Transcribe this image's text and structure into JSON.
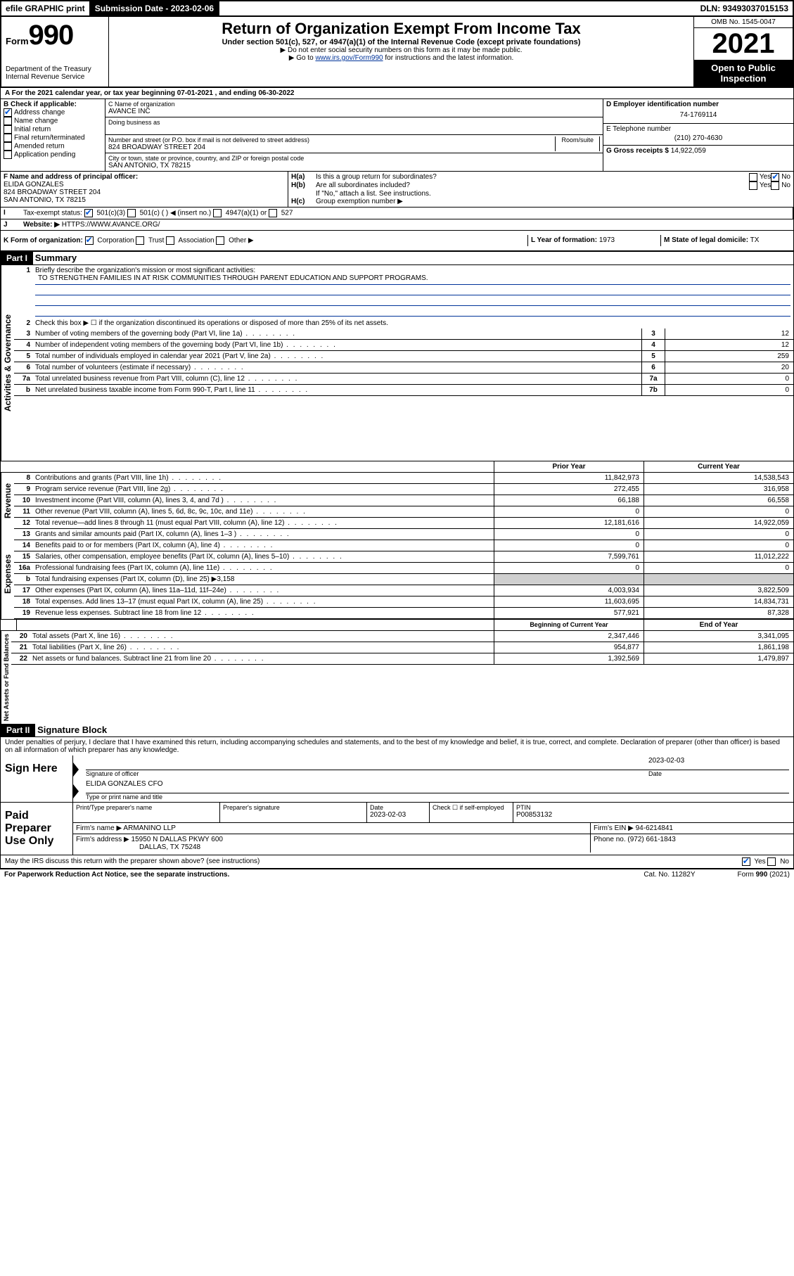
{
  "topbar": {
    "efile": "efile GRAPHIC print",
    "submission": "Submission Date - 2023-02-06",
    "dln": "DLN: 93493037015153"
  },
  "header": {
    "form_label": "Form",
    "form_number": "990",
    "dept": "Department of the Treasury",
    "irs": "Internal Revenue Service",
    "title": "Return of Organization Exempt From Income Tax",
    "subtitle": "Under section 501(c), 527, or 4947(a)(1) of the Internal Revenue Code (except private foundations)",
    "instr1": "▶ Do not enter social security numbers on this form as it may be made public.",
    "instr2_pre": "▶ Go to ",
    "instr2_link": "www.irs.gov/Form990",
    "instr2_post": " for instructions and the latest information.",
    "omb": "OMB No. 1545-0047",
    "year": "2021",
    "open_pub": "Open to Public Inspection"
  },
  "periodline": "For the 2021 calendar year, or tax year beginning 07-01-2021  , and ending 06-30-2022",
  "boxB": {
    "label": "B Check if applicable:",
    "items": [
      "Address change",
      "Name change",
      "Initial return",
      "Final return/terminated",
      "Amended return",
      "Application pending"
    ],
    "checked_index": 0
  },
  "boxC": {
    "label_name": "C Name of organization",
    "org_name": "AVANCE INC",
    "dba_label": "Doing business as",
    "street_label": "Number and street (or P.O. box if mail is not delivered to street address)",
    "room_label": "Room/suite",
    "street": "824 BROADWAY STREET 204",
    "city_label": "City or town, state or province, country, and ZIP or foreign postal code",
    "city": "SAN ANTONIO, TX  78215"
  },
  "boxD": {
    "label": "D Employer identification number",
    "value": "74-1769114"
  },
  "boxE": {
    "label": "E Telephone number",
    "value": "(210) 270-4630"
  },
  "boxG": {
    "label": "G Gross receipts $",
    "value": "14,922,059"
  },
  "boxF": {
    "label": "F Name and address of principal officer:",
    "line1": "ELIDA GONZALES",
    "line2": "824 BROADWAY STREET 204",
    "line3": "SAN ANTONIO, TX  78215"
  },
  "boxH": {
    "a_label": "Is this a group return for subordinates?",
    "a_prefix": "H(a)",
    "b_prefix": "H(b)",
    "b_label": "Are all subordinates included?",
    "ifno": "If \"No,\" attach a list. See instructions.",
    "c_prefix": "H(c)",
    "c_label": "Group exemption number ▶",
    "yes": "Yes",
    "no": "No"
  },
  "boxI": {
    "label": "Tax-exempt status:",
    "c3": "501(c)(3)",
    "c": "501(c) (   ) ◀ (insert no.)",
    "a1": "4947(a)(1) or",
    "s527": "527"
  },
  "boxJ": {
    "label": "Website: ▶",
    "value": "HTTPS://WWW.AVANCE.ORG/"
  },
  "boxK": {
    "label": "K Form of organization:",
    "opts": [
      "Corporation",
      "Trust",
      "Association",
      "Other ▶"
    ]
  },
  "boxL": {
    "label": "L Year of formation:",
    "value": "1973"
  },
  "boxM": {
    "label": "M State of legal domicile:",
    "value": "TX"
  },
  "part1": {
    "header": "Part I",
    "title": "Summary"
  },
  "mission": {
    "line_label": "1",
    "prompt": "Briefly describe the organization's mission or most significant activities:",
    "text": "TO STRENGTHEN FAMILIES IN AT RISK COMMUNITIES THROUGH PARENT EDUCATION AND SUPPORT PROGRAMS."
  },
  "governance_lines": [
    {
      "num": "2",
      "text": "Check this box ▶ ☐  if the organization discontinued its operations or disposed of more than 25% of its net assets."
    },
    {
      "num": "3",
      "text": "Number of voting members of the governing body (Part VI, line 1a)",
      "box": "3",
      "val": "12"
    },
    {
      "num": "4",
      "text": "Number of independent voting members of the governing body (Part VI, line 1b)",
      "box": "4",
      "val": "12"
    },
    {
      "num": "5",
      "text": "Total number of individuals employed in calendar year 2021 (Part V, line 2a)",
      "box": "5",
      "val": "259"
    },
    {
      "num": "6",
      "text": "Total number of volunteers (estimate if necessary)",
      "box": "6",
      "val": "20"
    },
    {
      "num": "7a",
      "text": "Total unrelated business revenue from Part VIII, column (C), line 12",
      "box": "7a",
      "val": "0"
    },
    {
      "num": "b",
      "text": "Net unrelated business taxable income from Form 990-T, Part I, line 11",
      "box": "7b",
      "val": "0"
    }
  ],
  "twocol_header": {
    "prior": "Prior Year",
    "current": "Current Year",
    "begin": "Beginning of Current Year",
    "end": "End of Year"
  },
  "revenue_lines": [
    {
      "num": "8",
      "text": "Contributions and grants (Part VIII, line 1h)",
      "prior": "11,842,973",
      "cur": "14,538,543"
    },
    {
      "num": "9",
      "text": "Program service revenue (Part VIII, line 2g)",
      "prior": "272,455",
      "cur": "316,958"
    },
    {
      "num": "10",
      "text": "Investment income (Part VIII, column (A), lines 3, 4, and 7d )",
      "prior": "66,188",
      "cur": "66,558"
    },
    {
      "num": "11",
      "text": "Other revenue (Part VIII, column (A), lines 5, 6d, 8c, 9c, 10c, and 11e)",
      "prior": "0",
      "cur": "0"
    },
    {
      "num": "12",
      "text": "Total revenue—add lines 8 through 11 (must equal Part VIII, column (A), line 12)",
      "prior": "12,181,616",
      "cur": "14,922,059"
    }
  ],
  "expense_lines": [
    {
      "num": "13",
      "text": "Grants and similar amounts paid (Part IX, column (A), lines 1–3 )",
      "prior": "0",
      "cur": "0"
    },
    {
      "num": "14",
      "text": "Benefits paid to or for members (Part IX, column (A), line 4)",
      "prior": "0",
      "cur": "0"
    },
    {
      "num": "15",
      "text": "Salaries, other compensation, employee benefits (Part IX, column (A), lines 5–10)",
      "prior": "7,599,761",
      "cur": "11,012,222"
    },
    {
      "num": "16a",
      "text": "Professional fundraising fees (Part IX, column (A), line 11e)",
      "prior": "0",
      "cur": "0"
    },
    {
      "num": "b",
      "text": "Total fundraising expenses (Part IX, column (D), line 25) ▶3,158",
      "grey": true
    },
    {
      "num": "17",
      "text": "Other expenses (Part IX, column (A), lines 11a–11d, 11f–24e)",
      "prior": "4,003,934",
      "cur": "3,822,509"
    },
    {
      "num": "18",
      "text": "Total expenses. Add lines 13–17 (must equal Part IX, column (A), line 25)",
      "prior": "11,603,695",
      "cur": "14,834,731"
    },
    {
      "num": "19",
      "text": "Revenue less expenses. Subtract line 18 from line 12",
      "prior": "577,921",
      "cur": "87,328"
    }
  ],
  "netassets_lines": [
    {
      "num": "20",
      "text": "Total assets (Part X, line 16)",
      "prior": "2,347,446",
      "cur": "3,341,095"
    },
    {
      "num": "21",
      "text": "Total liabilities (Part X, line 26)",
      "prior": "954,877",
      "cur": "1,861,198"
    },
    {
      "num": "22",
      "text": "Net assets or fund balances. Subtract line 21 from line 20",
      "prior": "1,392,569",
      "cur": "1,479,897"
    }
  ],
  "part2": {
    "header": "Part II",
    "title": "Signature Block"
  },
  "penalties": "Under penalties of perjury, I declare that I have examined this return, including accompanying schedules and statements, and to the best of my knowledge and belief, it is true, correct, and complete. Declaration of preparer (other than officer) is based on all information of which preparer has any knowledge.",
  "sign": {
    "here": "Sign Here",
    "sig_officer": "Signature of officer",
    "date_label": "Date",
    "date": "2023-02-03",
    "name": "ELIDA GONZALES CFO",
    "name_label": "Type or print name and title"
  },
  "paid": {
    "label": "Paid Preparer Use Only",
    "col_print": "Print/Type preparer's name",
    "col_sig": "Preparer's signature",
    "col_date": "Date",
    "date": "2023-02-03",
    "check_label": "Check ☐ if self-employed",
    "ptin_label": "PTIN",
    "ptin": "P00853132",
    "firm_name_label": "Firm's name   ▶",
    "firm_name": "ARMANINO LLP",
    "firm_ein_label": "Firm's EIN ▶",
    "firm_ein": "94-6214841",
    "firm_addr_label": "Firm's address ▶",
    "firm_addr1": "15950 N DALLAS PKWY 600",
    "firm_addr2": "DALLAS, TX 75248",
    "phone_label": "Phone no.",
    "phone": "(972) 661-1843"
  },
  "discuss": "May the IRS discuss this return with the preparer shown above? (see instructions)",
  "footer": {
    "left": "For Paperwork Reduction Act Notice, see the separate instructions.",
    "mid": "Cat. No. 11282Y",
    "right": "Form 990 (2021)"
  },
  "sidelabels": {
    "gov": "Activities & Governance",
    "rev": "Revenue",
    "exp": "Expenses",
    "net": "Net Assets or Fund Balances"
  }
}
